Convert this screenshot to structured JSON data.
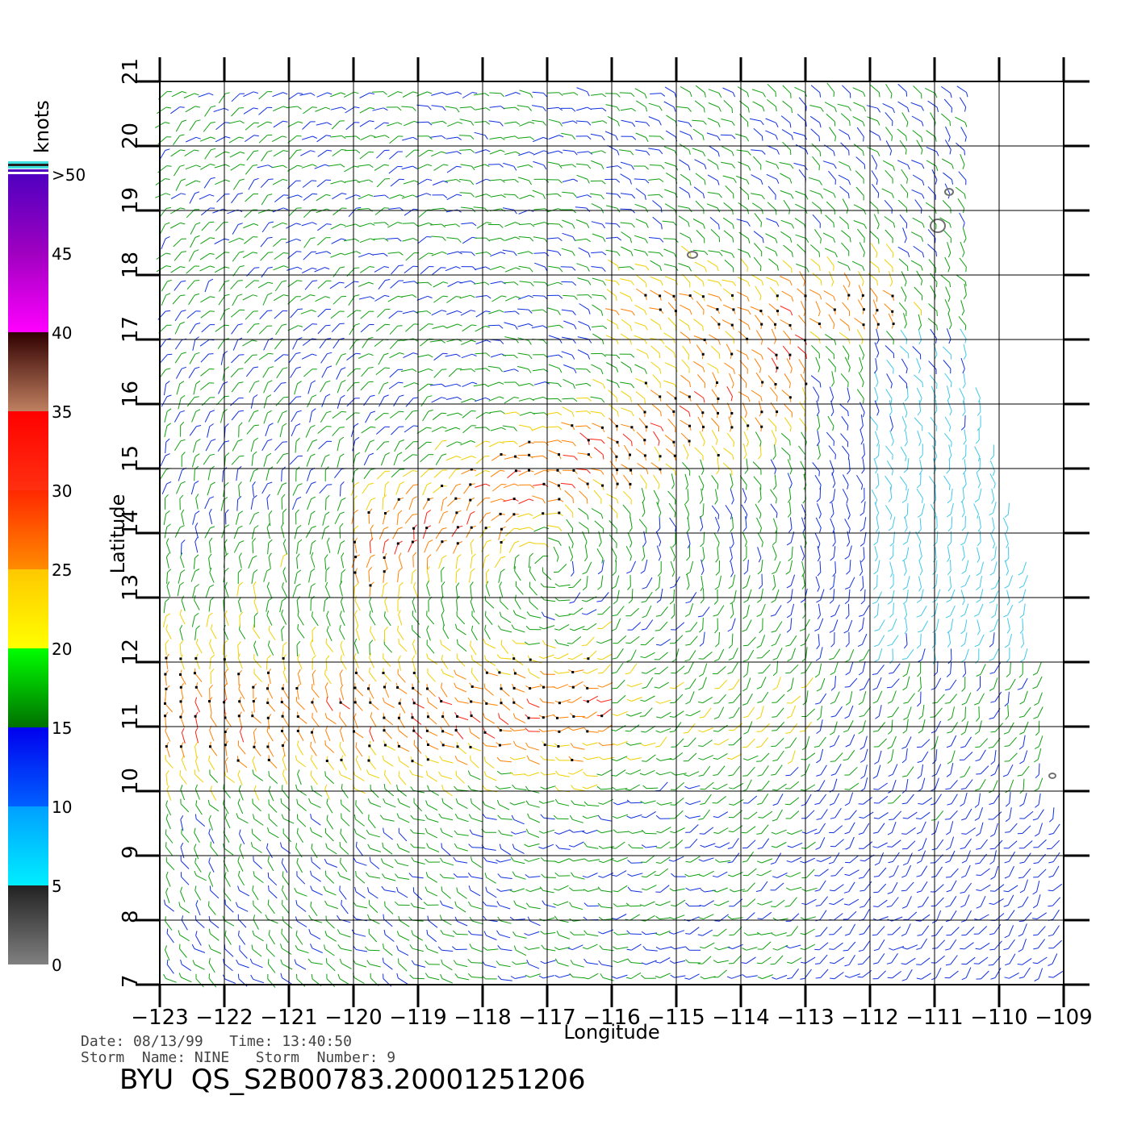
{
  "map": {
    "x_axis_label": "Longitude",
    "y_axis_label": "Latitude",
    "lon_range": [
      -123,
      -109
    ],
    "lat_range": [
      7,
      21
    ],
    "lon_ticks": [
      "-123",
      "-122",
      "-121",
      "-120",
      "-119",
      "-118",
      "-117",
      "-116",
      "-115",
      "-114",
      "-113",
      "-112",
      "-111",
      "-110",
      "-109"
    ],
    "lat_ticks": [
      "7",
      "8",
      "9",
      "10",
      "11",
      "12",
      "13",
      "14",
      "15",
      "16",
      "17",
      "18",
      "19",
      "20",
      "21"
    ],
    "grid": true,
    "content": "scatterometer wind vector field (colored by speed)"
  },
  "colorbar": {
    "unit_label": "knots",
    "tick_labels": [
      "0",
      "5",
      "10",
      "15",
      "20",
      "25",
      "30",
      "35",
      "40",
      "45",
      ">50"
    ],
    "bands": [
      {
        "from": 0,
        "to": 5,
        "colors": [
          "#808080",
          "#222222"
        ]
      },
      {
        "from": 5,
        "to": 10,
        "colors": [
          "#00eeff",
          "#00a0ff"
        ]
      },
      {
        "from": 10,
        "to": 15,
        "colors": [
          "#0060ff",
          "#0000ee"
        ]
      },
      {
        "from": 15,
        "to": 20,
        "colors": [
          "#007000",
          "#00ff00"
        ]
      },
      {
        "from": 20,
        "to": 25,
        "colors": [
          "#ffff00",
          "#ffc800"
        ]
      },
      {
        "from": 25,
        "to": 30,
        "colors": [
          "#ff8c00",
          "#ff2800"
        ]
      },
      {
        "from": 30,
        "to": 35,
        "colors": [
          "#ff3010",
          "#ff0000"
        ]
      },
      {
        "from": 35,
        "to": 40,
        "colors": [
          "#c08060",
          "#300000"
        ]
      },
      {
        "from": 40,
        "to": 45,
        "colors": [
          "#ff00ff",
          "#a000c0"
        ]
      },
      {
        "from": 45,
        "to": 50,
        "colors": [
          "#a000c0",
          "#5000c0"
        ]
      }
    ]
  },
  "footer": {
    "date_line": "Date: 08/13/99   Time: 13:40:50",
    "storm_line": "Storm  Name: NINE   Storm  Number: 9",
    "product": "BYU  QS_S2B00783.20001251206"
  }
}
